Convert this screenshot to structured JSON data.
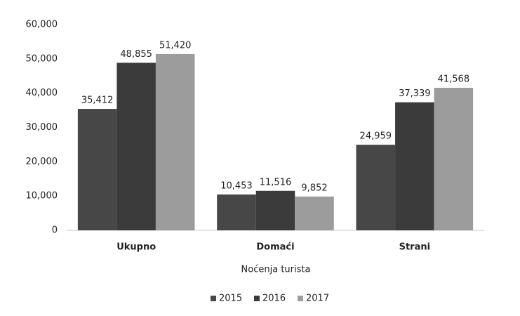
{
  "chart_data": {
    "type": "bar",
    "x_label": "Noćenja turista",
    "categories": [
      "Ukupno",
      "Domaći",
      "Strani"
    ],
    "series": [
      {
        "name": "2015",
        "color": "#474747",
        "values": [
          35412,
          10453,
          24959
        ],
        "value_labels": [
          "35,412",
          "10,453",
          "24,959"
        ]
      },
      {
        "name": "2016",
        "color": "#3b3b3b",
        "values": [
          48855,
          11516,
          37339
        ],
        "value_labels": [
          "48,855",
          "11,516",
          "37,339"
        ]
      },
      {
        "name": "2017",
        "color": "#9c9c9c",
        "values": [
          51420,
          9852,
          41568
        ],
        "value_labels": [
          "51,420",
          "9,852",
          "41,568"
        ]
      }
    ],
    "ylim": [
      0,
      60000
    ],
    "yticks": [
      0,
      {
        "value": 10000,
        "label": "10,000"
      },
      {
        "value": 20000,
        "label": "20,000"
      },
      {
        "value": 30000,
        "label": "30,000"
      },
      {
        "value": 40000,
        "label": "40,000"
      },
      {
        "value": 50000,
        "label": "50,000"
      },
      {
        "value": 60000,
        "label": "60,000"
      }
    ],
    "grid": false,
    "legend": "bottom"
  }
}
